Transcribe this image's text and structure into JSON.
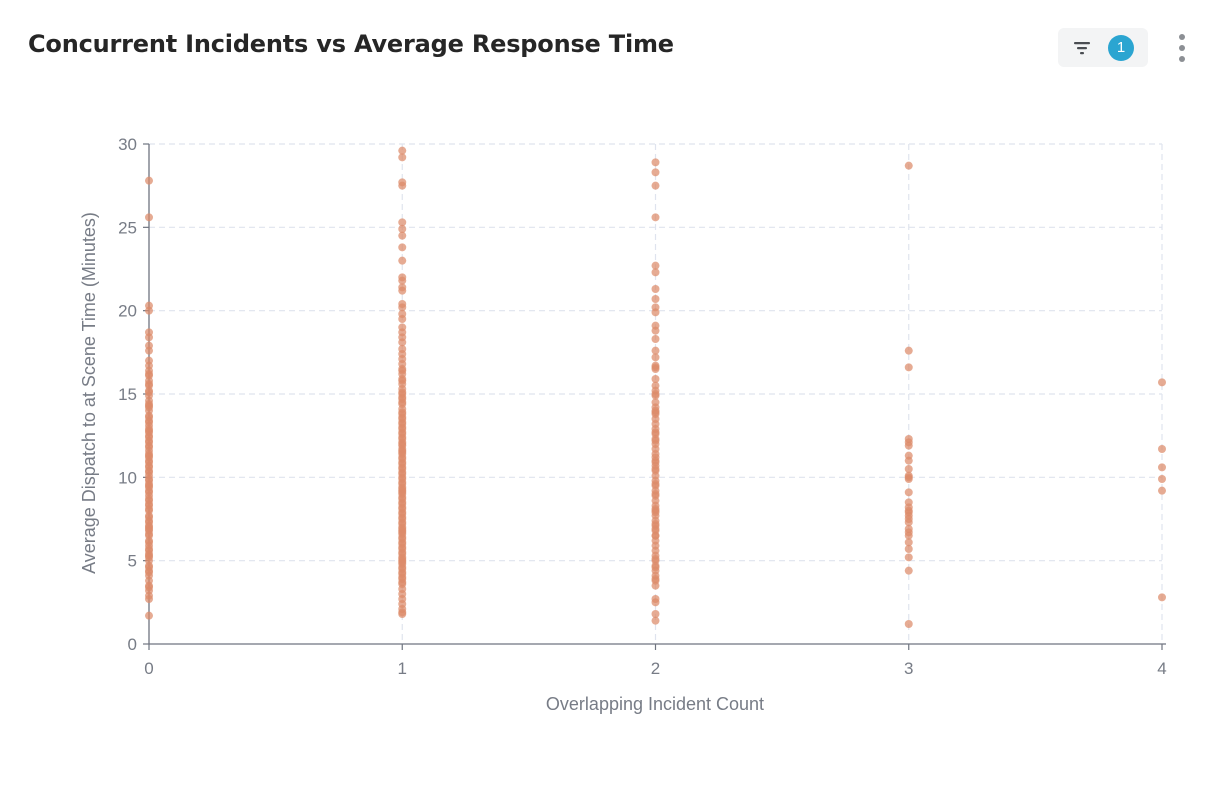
{
  "card": {
    "title": "Concurrent Incidents vs Average Response Time",
    "filter_count": "1",
    "filter_icon": "filter-icon",
    "more_icon": "vertical-ellipsis-icon"
  },
  "colors": {
    "point": "#dd8a6a",
    "badge": "#2ba5d1",
    "grid": "#dfe4ee",
    "axis": "#6f7480"
  },
  "chart_data": {
    "type": "scatter",
    "xlabel": "Overlapping Incident Count",
    "ylabel": "Average Dispatch to at Scene Time (Minutes)",
    "xlim": [
      0,
      4
    ],
    "ylim": [
      0,
      30
    ],
    "x_ticks": [
      "0",
      "1",
      "2",
      "3",
      "4"
    ],
    "y_ticks": [
      "0",
      "5",
      "10",
      "15",
      "20",
      "25",
      "30"
    ],
    "grid": true,
    "series": [
      {
        "x": [
          0,
          0,
          0,
          0,
          0,
          0,
          0,
          0,
          0,
          0,
          0,
          0,
          0,
          0,
          0,
          0,
          0,
          0,
          0,
          0,
          0,
          0,
          0,
          0,
          0,
          0,
          0,
          0,
          0,
          0,
          0,
          0,
          0,
          0,
          0,
          0,
          0,
          0,
          0,
          0,
          0,
          0,
          0,
          0,
          0,
          0,
          0,
          0,
          0,
          0,
          0,
          0,
          0,
          0,
          0,
          0,
          0,
          0,
          0,
          0,
          0,
          0,
          0,
          0,
          0,
          0,
          0,
          0,
          0,
          0,
          0,
          0,
          0,
          0,
          0,
          0,
          0,
          0,
          0,
          0,
          0,
          0,
          0,
          0,
          0,
          0,
          0,
          0,
          0,
          0,
          0,
          0,
          0,
          0
        ],
        "y": [
          27.8,
          25.6,
          20.3,
          20.0,
          18.7,
          18.4,
          17.9,
          17.6,
          17.0,
          16.7,
          16.4,
          16.1,
          15.8,
          15.5,
          15.2,
          14.9,
          14.6,
          14.3,
          14.0,
          13.7,
          13.4,
          13.1,
          12.8,
          12.5,
          12.2,
          11.9,
          11.6,
          11.3,
          11.0,
          10.7,
          10.4,
          10.1,
          9.8,
          9.5,
          9.2,
          8.9,
          8.6,
          8.3,
          8.0,
          7.7,
          7.4,
          7.1,
          6.8,
          6.5,
          6.2,
          5.9,
          5.6,
          5.3,
          5.0,
          4.7,
          4.4,
          4.1,
          3.8,
          3.5,
          3.2,
          2.9,
          1.7,
          15.1,
          14.4,
          13.6,
          12.9,
          12.1,
          11.4,
          10.6,
          9.9,
          9.1,
          8.4,
          7.6,
          6.9,
          6.1,
          5.4,
          4.6,
          16.2,
          13.3,
          11.2,
          9.4,
          7.3,
          5.7,
          12.4,
          10.9,
          8.7,
          6.6,
          15.6,
          14.2,
          12.7,
          11.8,
          10.3,
          9.6,
          8.1,
          7.0,
          5.2,
          4.3,
          3.4,
          2.7
        ]
      },
      {
        "x": [
          1,
          1,
          1,
          1,
          1,
          1,
          1,
          1,
          1,
          1,
          1,
          1,
          1,
          1,
          1,
          1,
          1,
          1,
          1,
          1,
          1,
          1,
          1,
          1,
          1,
          1,
          1,
          1,
          1,
          1,
          1,
          1,
          1,
          1,
          1,
          1,
          1,
          1,
          1,
          1,
          1,
          1,
          1,
          1,
          1,
          1,
          1,
          1,
          1,
          1,
          1,
          1,
          1,
          1,
          1,
          1,
          1,
          1,
          1,
          1,
          1,
          1,
          1,
          1,
          1,
          1,
          1,
          1,
          1,
          1,
          1,
          1,
          1,
          1,
          1,
          1,
          1,
          1,
          1,
          1,
          1,
          1,
          1,
          1,
          1,
          1,
          1,
          1,
          1,
          1,
          1,
          1,
          1,
          1,
          1,
          1,
          1,
          1,
          1,
          1,
          1,
          1,
          1,
          1,
          1,
          1,
          1,
          1,
          1,
          1,
          1,
          1,
          1,
          1,
          1,
          1,
          1,
          1,
          1,
          1
        ],
        "y": [
          29.6,
          29.2,
          27.7,
          27.5,
          25.3,
          24.9,
          24.5,
          23.8,
          23.0,
          22.0,
          21.8,
          21.4,
          21.2,
          20.4,
          20.2,
          19.8,
          19.5,
          19.0,
          18.7,
          18.4,
          18.1,
          17.7,
          17.4,
          17.1,
          16.8,
          16.5,
          16.2,
          15.9,
          15.6,
          15.3,
          15.0,
          14.7,
          14.4,
          14.1,
          13.8,
          13.5,
          13.2,
          12.9,
          12.6,
          12.3,
          12.0,
          11.7,
          11.4,
          11.1,
          10.8,
          10.5,
          10.2,
          9.9,
          9.6,
          9.3,
          9.0,
          8.7,
          8.4,
          8.1,
          7.8,
          7.5,
          7.2,
          6.9,
          6.6,
          6.3,
          6.0,
          5.7,
          5.4,
          5.1,
          4.8,
          4.5,
          4.2,
          3.9,
          3.6,
          3.3,
          3.0,
          2.7,
          2.4,
          2.1,
          1.9,
          1.8,
          15.8,
          15.1,
          14.5,
          13.9,
          13.3,
          12.7,
          12.1,
          11.5,
          10.9,
          10.3,
          9.7,
          9.1,
          8.5,
          7.9,
          7.3,
          6.7,
          6.1,
          5.5,
          4.9,
          4.3,
          3.7,
          14.8,
          13.6,
          12.4,
          11.2,
          10.0,
          8.8,
          7.6,
          6.4,
          5.2,
          4.0,
          16.4,
          11.9,
          10.6,
          9.4,
          8.2,
          7.0,
          5.8,
          4.6,
          13.0,
          11.6,
          9.2,
          6.8,
          5.0
        ]
      },
      {
        "x": [
          2,
          2,
          2,
          2,
          2,
          2,
          2,
          2,
          2,
          2,
          2,
          2,
          2,
          2,
          2,
          2,
          2,
          2,
          2,
          2,
          2,
          2,
          2,
          2,
          2,
          2,
          2,
          2,
          2,
          2,
          2,
          2,
          2,
          2,
          2,
          2,
          2,
          2,
          2,
          2,
          2,
          2,
          2,
          2,
          2,
          2,
          2,
          2,
          2,
          2,
          2,
          2,
          2,
          2,
          2,
          2,
          2,
          2,
          2,
          2,
          2,
          2,
          2,
          2,
          2,
          2,
          2,
          2,
          2,
          2,
          2,
          2,
          2,
          2,
          2,
          2,
          2,
          2,
          2,
          2,
          2
        ],
        "y": [
          28.9,
          28.3,
          27.5,
          25.6,
          22.7,
          22.3,
          21.3,
          20.7,
          20.2,
          19.9,
          19.1,
          18.8,
          18.3,
          17.6,
          17.2,
          16.7,
          16.6,
          15.9,
          15.5,
          15.2,
          14.9,
          14.5,
          14.2,
          13.8,
          13.5,
          13.2,
          12.9,
          12.6,
          12.3,
          12.0,
          11.7,
          11.4,
          11.0,
          10.7,
          10.4,
          10.1,
          9.8,
          9.5,
          9.2,
          8.9,
          8.6,
          8.3,
          8.0,
          7.7,
          7.4,
          7.1,
          6.8,
          6.5,
          6.2,
          5.9,
          5.6,
          5.3,
          5.0,
          4.7,
          4.4,
          4.1,
          3.8,
          3.5,
          2.7,
          2.5,
          1.8,
          1.4,
          16.5,
          15.0,
          13.9,
          12.2,
          11.2,
          10.5,
          9.0,
          7.9,
          7.2,
          6.9,
          5.1,
          4.6,
          3.9,
          14.0,
          12.7,
          10.9,
          9.6,
          8.1,
          6.5
        ]
      },
      {
        "x": [
          3,
          3,
          3,
          3,
          3,
          3,
          3,
          3,
          3,
          3,
          3,
          3,
          3,
          3,
          3,
          3,
          3,
          3,
          3,
          3,
          3,
          3,
          3,
          3,
          3,
          3,
          3,
          3
        ],
        "y": [
          28.7,
          17.6,
          16.6,
          12.3,
          12.1,
          11.9,
          11.3,
          11.0,
          10.5,
          10.1,
          9.9,
          9.1,
          8.5,
          8.0,
          7.9,
          7.7,
          7.5,
          7.3,
          6.7,
          6.5,
          6.1,
          5.7,
          5.2,
          4.4,
          1.2,
          10.0,
          8.2,
          6.9
        ]
      },
      {
        "x": [
          4,
          4,
          4,
          4,
          4,
          4
        ],
        "y": [
          15.7,
          11.7,
          10.6,
          9.9,
          9.2,
          2.8
        ]
      }
    ]
  }
}
